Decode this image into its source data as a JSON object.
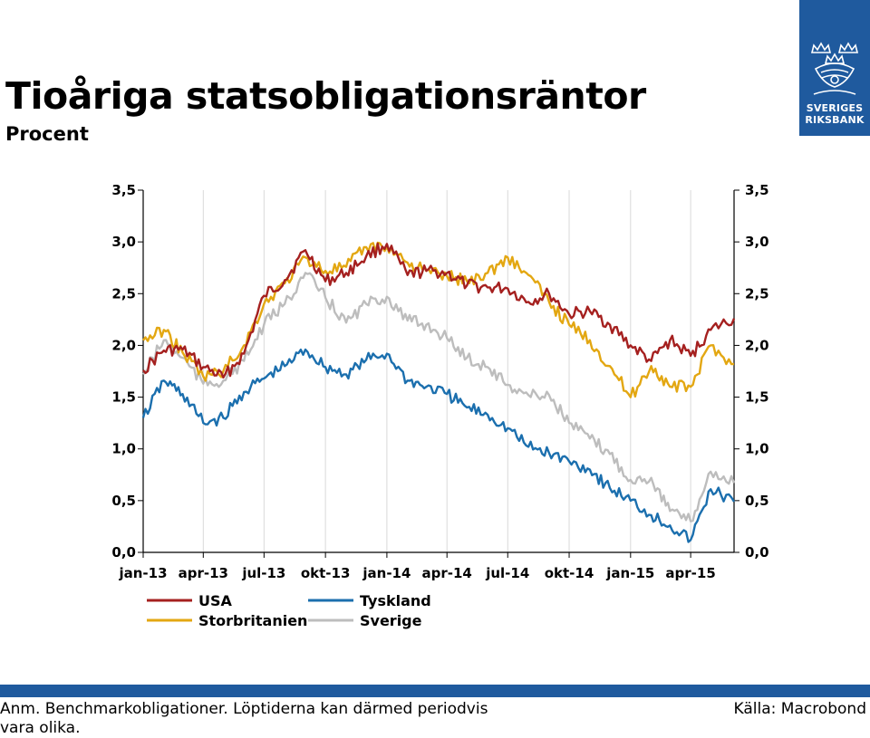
{
  "header": {
    "title": "Tioåriga statsobligationsräntor",
    "subtitle": "Procent"
  },
  "logo": {
    "name_line1": "SVERIGES",
    "name_line2": "RIKSBANK",
    "color": "#1f5a9e"
  },
  "footer": {
    "note": "Anm. Benchmarkobligationer. Löptiderna kan därmed periodvis vara olika.",
    "source": "Källa: Macrobond",
    "bar_color": "#1f5a9e"
  },
  "chart_data": {
    "type": "line",
    "x_ticks": [
      "jan-13",
      "apr-13",
      "jul-13",
      "okt-13",
      "jan-14",
      "apr-14",
      "jul-14",
      "okt-14",
      "jan-15",
      "apr-15"
    ],
    "x_range": [
      "2013-01-01",
      "2015-06-05"
    ],
    "y_ticks_left": [
      "3,5",
      "3,0",
      "2,5",
      "2,0",
      "1,5",
      "1,0",
      "0,5",
      "0,0"
    ],
    "y_ticks_right": [
      "3,5",
      "3,0",
      "2,5",
      "2,0",
      "1,5",
      "1,0",
      "0,5",
      "0,0"
    ],
    "ylim": [
      0,
      3.5
    ],
    "grid": "vertical",
    "legend_position": "bottom-left",
    "series": [
      {
        "name": "USA",
        "color": "#a5201f",
        "points": [
          [
            "2013-01-01",
            1.76
          ],
          [
            "2013-02-01",
            1.95
          ],
          [
            "2013-03-01",
            1.96
          ],
          [
            "2013-04-01",
            1.79
          ],
          [
            "2013-05-01",
            1.69
          ],
          [
            "2013-06-01",
            1.92
          ],
          [
            "2013-07-01",
            2.48
          ],
          [
            "2013-08-01",
            2.63
          ],
          [
            "2013-09-01",
            2.92
          ],
          [
            "2013-10-01",
            2.62
          ],
          [
            "2013-11-01",
            2.7
          ],
          [
            "2013-12-01",
            2.86
          ],
          [
            "2014-01-01",
            2.98
          ],
          [
            "2014-02-01",
            2.68
          ],
          [
            "2014-03-01",
            2.72
          ],
          [
            "2014-04-01",
            2.7
          ],
          [
            "2014-05-01",
            2.58
          ],
          [
            "2014-06-01",
            2.56
          ],
          [
            "2014-07-01",
            2.55
          ],
          [
            "2014-08-01",
            2.42
          ],
          [
            "2014-09-01",
            2.5
          ],
          [
            "2014-10-01",
            2.3
          ],
          [
            "2014-11-01",
            2.33
          ],
          [
            "2014-12-01",
            2.2
          ],
          [
            "2015-01-01",
            2.0
          ],
          [
            "2015-02-01",
            1.85
          ],
          [
            "2015-03-01",
            2.05
          ],
          [
            "2015-04-01",
            1.9
          ],
          [
            "2015-05-01",
            2.15
          ],
          [
            "2015-06-05",
            2.26
          ]
        ]
      },
      {
        "name": "Tyskland",
        "color": "#1b6fae",
        "points": [
          [
            "2013-01-01",
            1.3
          ],
          [
            "2013-02-01",
            1.66
          ],
          [
            "2013-03-01",
            1.53
          ],
          [
            "2013-04-01",
            1.25
          ],
          [
            "2013-05-01",
            1.3
          ],
          [
            "2013-06-01",
            1.55
          ],
          [
            "2013-07-01",
            1.68
          ],
          [
            "2013-08-01",
            1.8
          ],
          [
            "2013-09-01",
            1.96
          ],
          [
            "2013-10-01",
            1.79
          ],
          [
            "2013-11-01",
            1.72
          ],
          [
            "2013-12-01",
            1.86
          ],
          [
            "2014-01-01",
            1.92
          ],
          [
            "2014-02-01",
            1.66
          ],
          [
            "2014-03-01",
            1.6
          ],
          [
            "2014-04-01",
            1.53
          ],
          [
            "2014-05-01",
            1.4
          ],
          [
            "2014-06-01",
            1.33
          ],
          [
            "2014-07-01",
            1.2
          ],
          [
            "2014-08-01",
            1.02
          ],
          [
            "2014-09-01",
            0.96
          ],
          [
            "2014-10-01",
            0.88
          ],
          [
            "2014-11-01",
            0.8
          ],
          [
            "2014-12-01",
            0.62
          ],
          [
            "2015-01-01",
            0.5
          ],
          [
            "2015-02-01",
            0.36
          ],
          [
            "2015-03-01",
            0.26
          ],
          [
            "2015-04-01",
            0.12
          ],
          [
            "2015-05-01",
            0.61
          ],
          [
            "2015-06-05",
            0.49
          ]
        ]
      },
      {
        "name": "Storbritanien",
        "color": "#e3a712",
        "points": [
          [
            "2013-01-01",
            2.05
          ],
          [
            "2013-02-01",
            2.15
          ],
          [
            "2013-03-01",
            1.93
          ],
          [
            "2013-04-01",
            1.7
          ],
          [
            "2013-05-01",
            1.75
          ],
          [
            "2013-06-01",
            2.0
          ],
          [
            "2013-07-01",
            2.4
          ],
          [
            "2013-08-01",
            2.6
          ],
          [
            "2013-09-01",
            2.85
          ],
          [
            "2013-10-01",
            2.72
          ],
          [
            "2013-11-01",
            2.76
          ],
          [
            "2013-12-01",
            2.95
          ],
          [
            "2014-01-01",
            2.96
          ],
          [
            "2014-02-01",
            2.8
          ],
          [
            "2014-03-01",
            2.72
          ],
          [
            "2014-04-01",
            2.67
          ],
          [
            "2014-05-01",
            2.62
          ],
          [
            "2014-06-01",
            2.7
          ],
          [
            "2014-07-01",
            2.85
          ],
          [
            "2014-08-01",
            2.68
          ],
          [
            "2014-09-01",
            2.42
          ],
          [
            "2014-10-01",
            2.2
          ],
          [
            "2014-11-01",
            2.05
          ],
          [
            "2014-12-01",
            1.8
          ],
          [
            "2015-01-01",
            1.5
          ],
          [
            "2015-02-01",
            1.8
          ],
          [
            "2015-03-01",
            1.6
          ],
          [
            "2015-04-01",
            1.6
          ],
          [
            "2015-05-01",
            2.0
          ],
          [
            "2015-06-05",
            1.82
          ]
        ]
      },
      {
        "name": "Sverige",
        "color": "#bdbdbd",
        "points": [
          [
            "2013-01-01",
            1.72
          ],
          [
            "2013-02-01",
            2.05
          ],
          [
            "2013-03-01",
            1.88
          ],
          [
            "2013-04-01",
            1.63
          ],
          [
            "2013-05-01",
            1.66
          ],
          [
            "2013-06-01",
            1.85
          ],
          [
            "2013-07-01",
            2.2
          ],
          [
            "2013-08-01",
            2.4
          ],
          [
            "2013-09-01",
            2.7
          ],
          [
            "2013-10-01",
            2.46
          ],
          [
            "2013-11-01",
            2.22
          ],
          [
            "2013-12-01",
            2.4
          ],
          [
            "2014-01-01",
            2.47
          ],
          [
            "2014-02-01",
            2.24
          ],
          [
            "2014-03-01",
            2.2
          ],
          [
            "2014-04-01",
            2.07
          ],
          [
            "2014-05-01",
            1.88
          ],
          [
            "2014-06-01",
            1.79
          ],
          [
            "2014-07-01",
            1.62
          ],
          [
            "2014-08-01",
            1.52
          ],
          [
            "2014-09-01",
            1.52
          ],
          [
            "2014-10-01",
            1.25
          ],
          [
            "2014-11-01",
            1.1
          ],
          [
            "2014-12-01",
            0.95
          ],
          [
            "2015-01-01",
            0.7
          ],
          [
            "2015-02-01",
            0.72
          ],
          [
            "2015-03-01",
            0.4
          ],
          [
            "2015-04-01",
            0.3
          ],
          [
            "2015-05-01",
            0.78
          ],
          [
            "2015-06-05",
            0.67
          ]
        ]
      }
    ]
  }
}
